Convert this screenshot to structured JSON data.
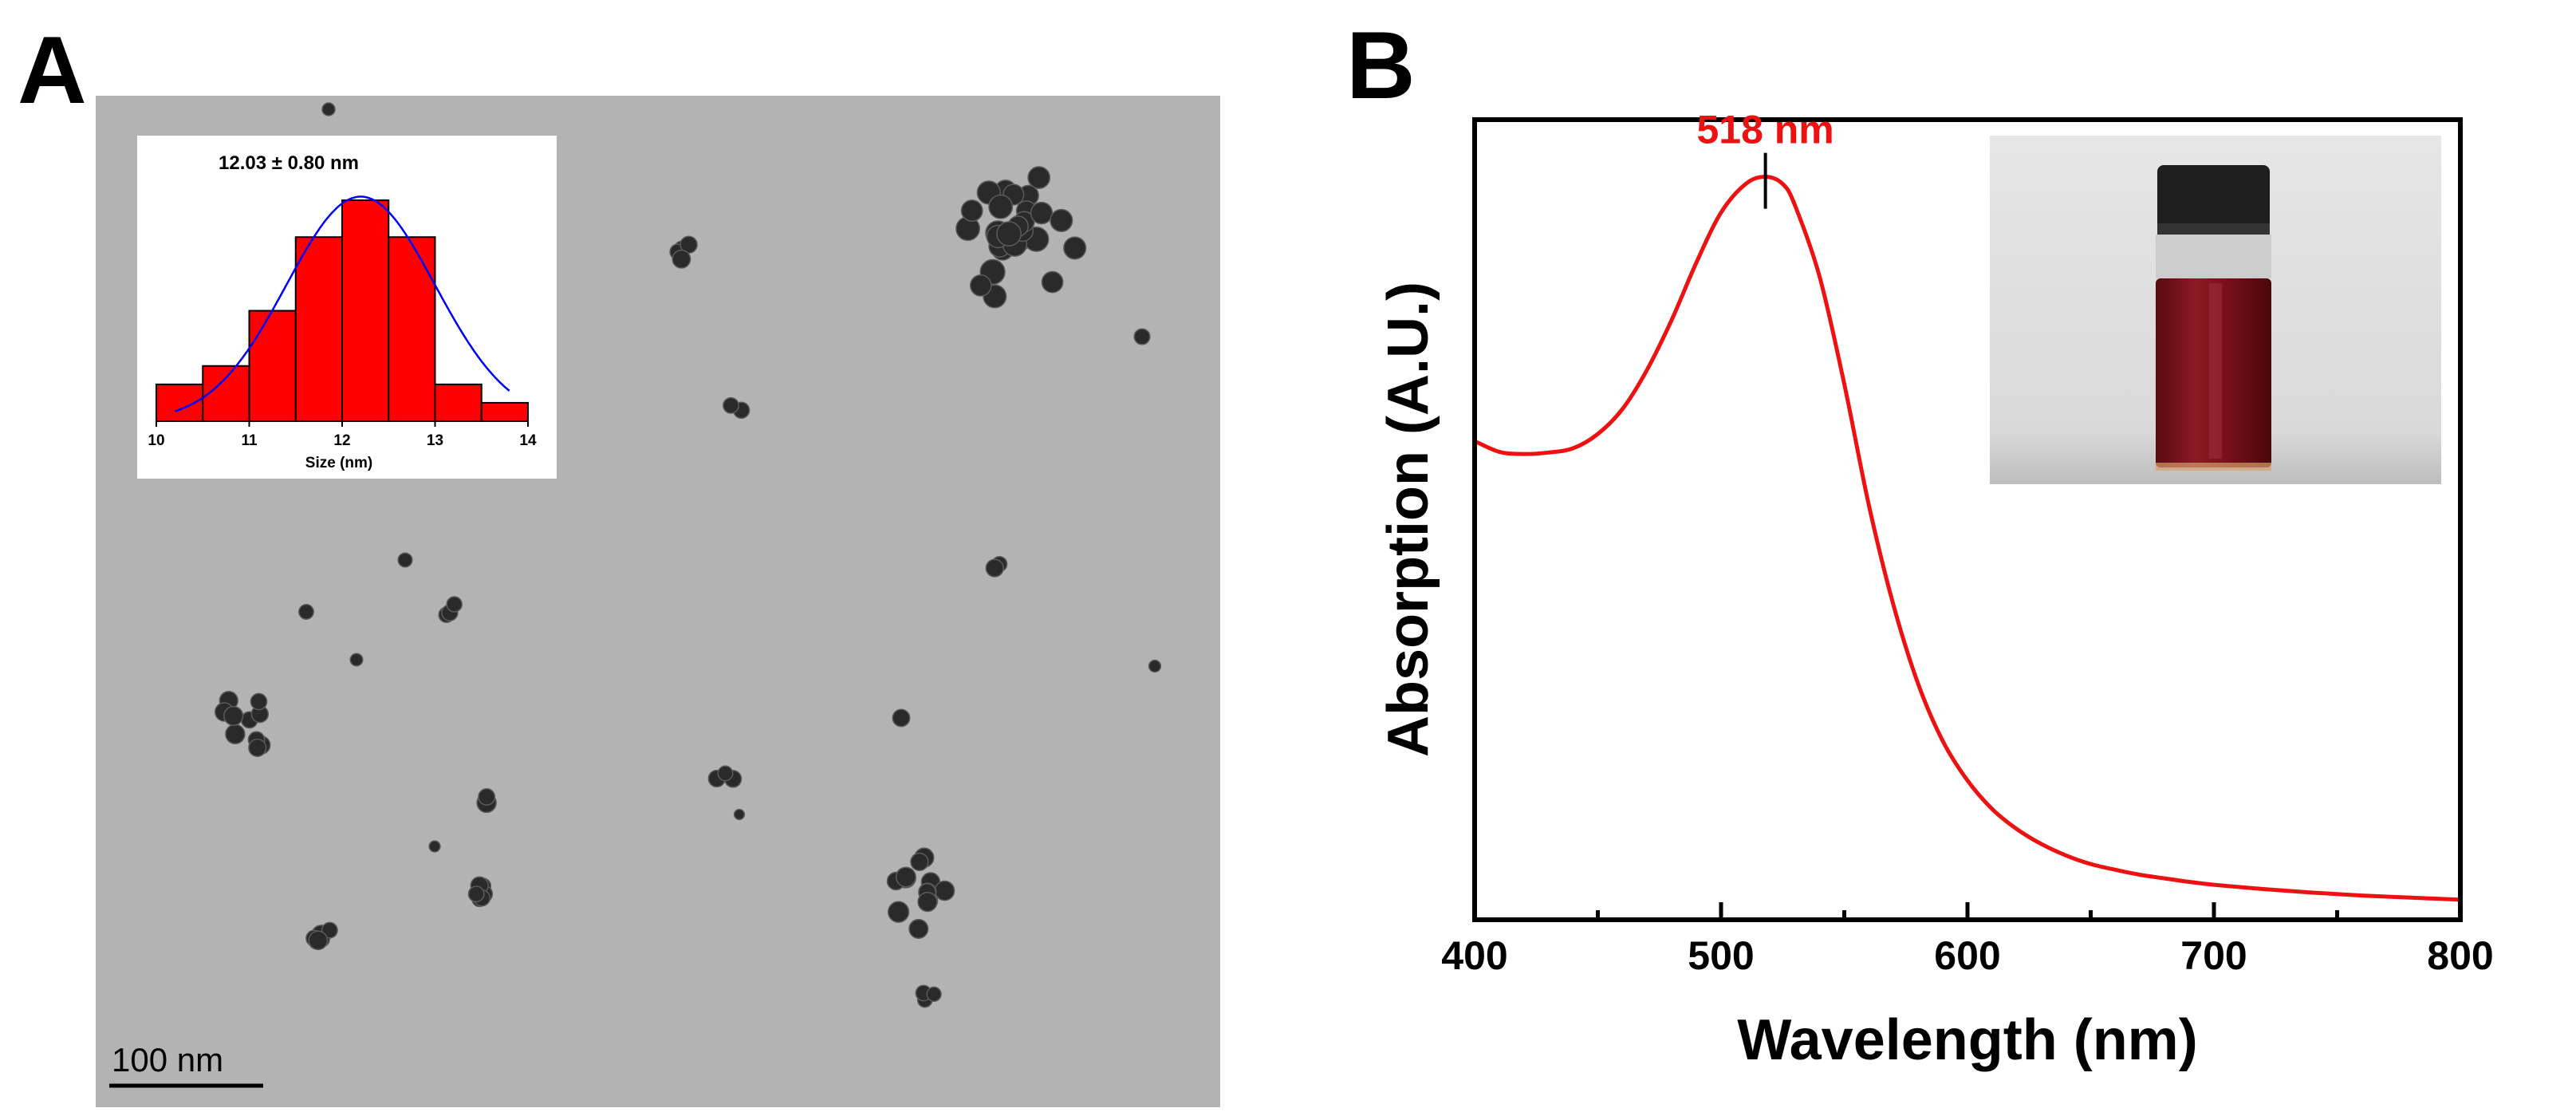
{
  "panels": {
    "a_letter": "A",
    "b_letter": "B"
  },
  "tem_image": {
    "scale_bar_label": "100 nm",
    "background_color": "#b3b3b3",
    "particle_color": "#2a2a2a"
  },
  "chart_data": [
    {
      "type": "bar",
      "title": "12.03 ± 0.80 nm",
      "xlabel": "Size (nm)",
      "ylabel": "",
      "x_ticks": [
        10,
        11,
        12,
        13,
        14
      ],
      "xlim": [
        10,
        14
      ],
      "bin_centers": [
        10.25,
        10.75,
        11.25,
        11.75,
        12.25,
        12.75,
        13.25,
        13.75
      ],
      "values": [
        2,
        3,
        6,
        10,
        12,
        10,
        2,
        1
      ],
      "ylim": [
        0,
        13
      ],
      "bar_color": "#ff0000",
      "fit_curve": {
        "type": "gaussian",
        "mean": 12.03,
        "sd": 0.8,
        "color": "#0000ff"
      }
    },
    {
      "type": "line",
      "title": "",
      "xlabel": "Wavelength (nm)",
      "ylabel": "Absorption (A.U.)",
      "xlim": [
        400,
        800
      ],
      "ylim": [
        0,
        1.12
      ],
      "x_ticks": [
        400,
        500,
        600,
        700,
        800
      ],
      "grid": false,
      "annotation": {
        "text": "518 nm",
        "x": 518,
        "color": "#ee1111"
      },
      "series": [
        {
          "color": "#ee1111",
          "x": [
            400,
            410,
            420,
            430,
            440,
            450,
            460,
            470,
            480,
            490,
            500,
            510,
            518,
            525,
            530,
            540,
            550,
            560,
            570,
            580,
            590,
            600,
            610,
            620,
            630,
            640,
            650,
            660,
            670,
            680,
            690,
            700,
            720,
            740,
            760,
            780,
            800
          ],
          "y": [
            0.67,
            0.655,
            0.652,
            0.654,
            0.66,
            0.68,
            0.715,
            0.77,
            0.84,
            0.92,
            0.99,
            1.03,
            1.04,
            1.03,
            1.0,
            0.9,
            0.75,
            0.58,
            0.44,
            0.33,
            0.25,
            0.195,
            0.155,
            0.127,
            0.106,
            0.09,
            0.078,
            0.07,
            0.063,
            0.058,
            0.053,
            0.049,
            0.043,
            0.038,
            0.034,
            0.031,
            0.028
          ]
        }
      ]
    }
  ]
}
